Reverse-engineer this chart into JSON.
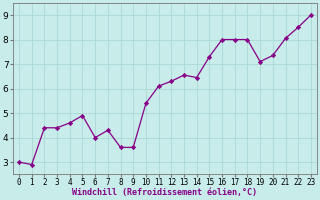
{
  "x": [
    0,
    1,
    2,
    3,
    4,
    5,
    6,
    7,
    8,
    9,
    10,
    11,
    12,
    13,
    14,
    15,
    16,
    17,
    18,
    19,
    20,
    21,
    22,
    23
  ],
  "y": [
    3.0,
    2.9,
    4.4,
    4.4,
    4.6,
    4.9,
    4.0,
    4.3,
    3.6,
    3.6,
    5.4,
    6.1,
    6.3,
    6.55,
    6.45,
    7.3,
    8.0,
    8.0,
    8.0,
    7.1,
    7.35,
    8.05,
    8.5,
    9.0
  ],
  "line_color": "#880088",
  "marker": "D",
  "marker_size": 2.2,
  "bg_color": "#c8ecea",
  "grid_color": "#aad8d4",
  "xlabel": "Windchill (Refroidissement éolien,°C)",
  "xlim": [
    -0.5,
    23.5
  ],
  "ylim": [
    2.5,
    9.5
  ],
  "yticks": [
    3,
    4,
    5,
    6,
    7,
    8,
    9
  ],
  "xticks": [
    0,
    1,
    2,
    3,
    4,
    5,
    6,
    7,
    8,
    9,
    10,
    11,
    12,
    13,
    14,
    15,
    16,
    17,
    18,
    19,
    20,
    21,
    22,
    23
  ],
  "xlabel_color": "#880088",
  "xlabel_fontsize": 6.0,
  "tick_fontsize": 5.5,
  "ytick_fontsize": 6.5
}
